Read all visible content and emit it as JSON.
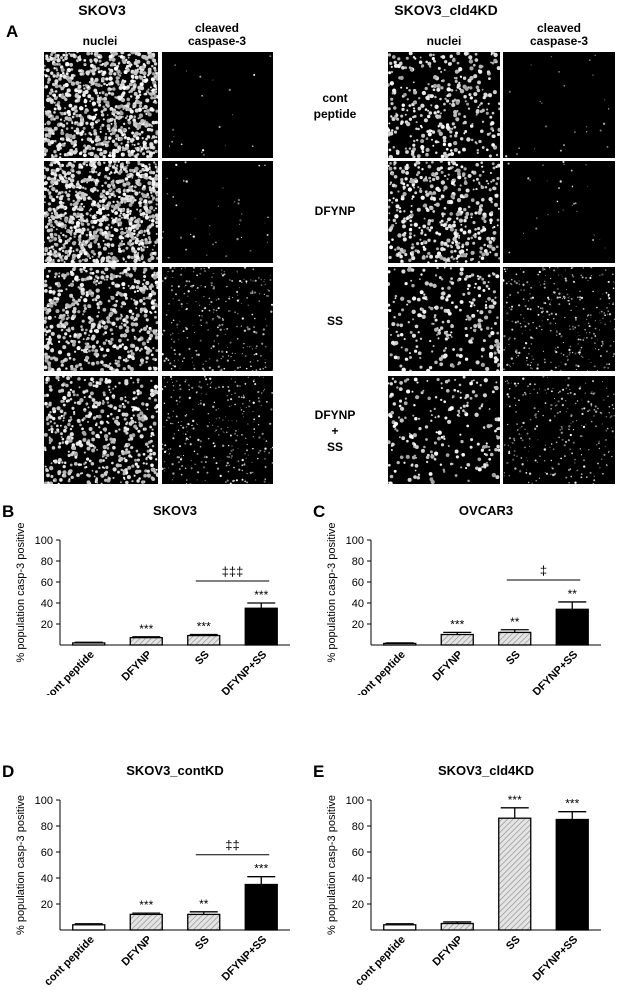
{
  "panel_a": {
    "letter": "A",
    "left_title": "SKOV3",
    "right_title": "SKOV3_cld4KD",
    "col_nuclei": "nuclei",
    "col_casp_line1": "cleaved",
    "col_casp_line2": "caspase-3",
    "rows": [
      {
        "line1": "cont",
        "line2": "peptide",
        "line3": ""
      },
      {
        "line1": "DFYNP",
        "line2": "",
        "line3": ""
      },
      {
        "line1": "SS",
        "line2": "",
        "line3": ""
      },
      {
        "line1": "DFYNP",
        "line2": "+",
        "line3": "SS"
      }
    ]
  },
  "chart_data": [
    {
      "letter": "B",
      "type": "bar",
      "title": "SKOV3",
      "ylabel": "% population casp-3 positive",
      "ylim": [
        0,
        100
      ],
      "yticks": [
        20,
        40,
        60,
        80,
        100
      ],
      "categories": [
        "cont peptide",
        "DFYNP",
        "SS",
        "DFYNP+SS"
      ],
      "values": [
        2,
        7,
        9,
        35
      ],
      "errors": [
        0.6,
        0.8,
        1.0,
        5
      ],
      "fills": [
        "#ffffff",
        "hatch",
        "hatch",
        "#000000"
      ],
      "significance": [
        "",
        "***",
        "***",
        "***"
      ],
      "bracket": {
        "label": "‡‡‡",
        "from": 2,
        "to": 3
      }
    },
    {
      "letter": "C",
      "type": "bar",
      "title": "OVCAR3",
      "ylabel": "% population casp-3 positive",
      "ylim": [
        0,
        100
      ],
      "yticks": [
        20,
        40,
        60,
        80,
        100
      ],
      "categories": [
        "cont peptide",
        "DFYNP",
        "SS",
        "DFYNP+SS"
      ],
      "values": [
        1.5,
        10,
        12,
        34
      ],
      "errors": [
        0.5,
        2,
        2.5,
        7
      ],
      "fills": [
        "#ffffff",
        "hatch",
        "hatch",
        "#000000"
      ],
      "significance": [
        "",
        "***",
        "**",
        "**"
      ],
      "bracket": {
        "label": "‡",
        "from": 2,
        "to": 3
      }
    },
    {
      "letter": "D",
      "type": "bar",
      "title": "SKOV3_contKD",
      "ylabel": "% population casp-3 positive",
      "ylim": [
        0,
        100
      ],
      "yticks": [
        20,
        40,
        60,
        80,
        100
      ],
      "categories": [
        "cont peptide",
        "DFYNP",
        "SS",
        "DFYNP+SS"
      ],
      "values": [
        4,
        12,
        12,
        35
      ],
      "errors": [
        0.8,
        1.0,
        2,
        6
      ],
      "fills": [
        "#ffffff",
        "hatch",
        "hatch",
        "#000000"
      ],
      "significance": [
        "",
        "***",
        "**",
        "***"
      ],
      "bracket": {
        "label": "‡‡",
        "from": 2,
        "to": 3
      }
    },
    {
      "letter": "E",
      "type": "bar",
      "title": "SKOV3_cld4KD",
      "ylabel": "% population casp-3 positive",
      "ylim": [
        0,
        100
      ],
      "yticks": [
        20,
        40,
        60,
        80,
        100
      ],
      "categories": [
        "cont peptide",
        "DFYNP",
        "SS",
        "DFYNP+SS"
      ],
      "values": [
        4,
        5,
        86,
        85
      ],
      "errors": [
        0.8,
        1.2,
        8,
        6
      ],
      "fills": [
        "#ffffff",
        "hatch",
        "hatch",
        "#000000"
      ],
      "significance": [
        "",
        "",
        "***",
        "***"
      ],
      "bracket": null
    }
  ]
}
